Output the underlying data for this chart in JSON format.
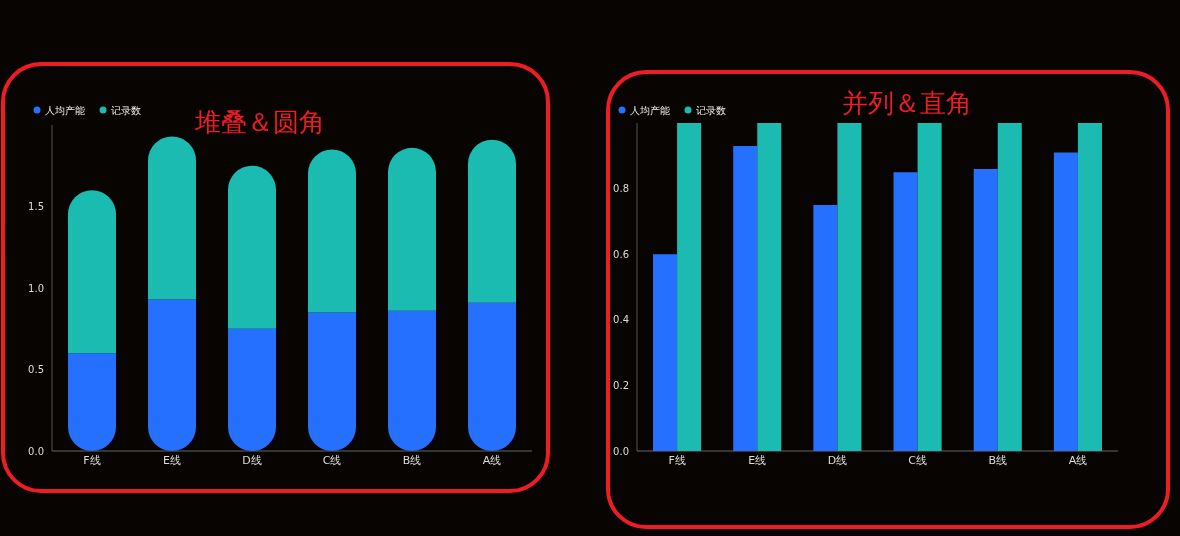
{
  "chart_data": [
    {
      "type": "bar",
      "title": "堆叠＆圆角",
      "stacked": true,
      "legend": "top left",
      "categories": [
        "F线",
        "E线",
        "D线",
        "C线",
        "B线",
        "A线"
      ],
      "series": [
        {
          "name": "人均产能",
          "color": "#2670ff",
          "values": [
            0.6,
            0.93,
            0.75,
            0.85,
            0.86,
            0.91
          ]
        },
        {
          "name": "记录数",
          "color": "#1bbbb1",
          "values": [
            1,
            1,
            1,
            1,
            1,
            1
          ]
        }
      ],
      "ylim": [
        0,
        2
      ],
      "yticks": [
        {
          "value": 0,
          "label": "0.0"
        },
        {
          "value": 0.5,
          "label": "0.5"
        },
        {
          "value": 1,
          "label": "1.0"
        },
        {
          "value": 1.5,
          "label": "1.5"
        }
      ]
    },
    {
      "type": "bar",
      "title": "并列＆直角",
      "legend": "top left",
      "categories": [
        "F线",
        "E线",
        "D线",
        "C线",
        "B线",
        "A线"
      ],
      "series": [
        {
          "name": "人均产能",
          "color": "#2670ff",
          "values": [
            0.6,
            0.93,
            0.75,
            0.85,
            0.86,
            0.91
          ]
        },
        {
          "name": "记录数",
          "color": "#1bbbb1",
          "values": [
            1,
            1,
            1,
            1,
            1,
            1
          ]
        }
      ],
      "ylim": [
        0,
        1
      ],
      "yticks": [
        {
          "value": 0,
          "label": "0.0"
        },
        {
          "value": 0.2,
          "label": "0.2"
        },
        {
          "value": 0.4,
          "label": "0.4"
        },
        {
          "value": 0.6,
          "label": "0.6"
        },
        {
          "value": 0.8,
          "label": "0.8"
        }
      ]
    }
  ]
}
